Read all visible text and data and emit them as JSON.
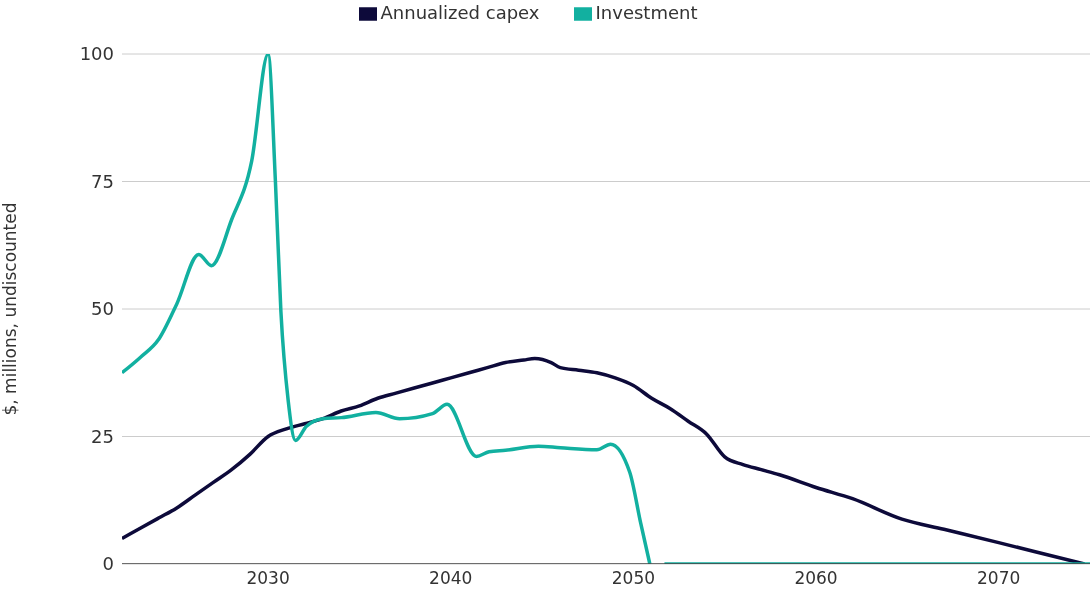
{
  "chart_data": {
    "type": "line",
    "ylabel": "$, millions, undiscounted",
    "xlim": [
      2022,
      2075
    ],
    "xticks": [
      2030,
      2040,
      2050,
      2060,
      2070
    ],
    "ylim": [
      0,
      100
    ],
    "yticks": [
      0,
      25,
      50,
      75,
      100
    ],
    "grid": "y",
    "legend": "top",
    "marker": "none",
    "line_style": "solid",
    "series": [
      {
        "name": "Annualized capex",
        "color": "#0d0a3a",
        "x": [
          2022,
          2023,
          2024,
          2025,
          2026,
          2027,
          2028,
          2029,
          2030,
          2031,
          2032,
          2033,
          2034,
          2035,
          2036,
          2037,
          2038,
          2039,
          2040,
          2041,
          2042,
          2043,
          2044,
          2044.6,
          2045.5,
          2046,
          2047,
          2048,
          2049,
          2050,
          2051,
          2052,
          2053,
          2054,
          2055,
          2056,
          2057,
          2058,
          2060,
          2062,
          2064.7,
          2067,
          2070,
          2072,
          2074.7
        ],
        "values": [
          5,
          7,
          9,
          11,
          13.5,
          16,
          18.5,
          21.5,
          25,
          26.5,
          27.5,
          28.5,
          30,
          31,
          32.5,
          33.5,
          34.5,
          35.5,
          36.5,
          37.5,
          38.5,
          39.5,
          40,
          40.3,
          39.5,
          38.5,
          38,
          37.5,
          36.5,
          35,
          32.5,
          30.5,
          28,
          25.5,
          21,
          19.5,
          18.5,
          17.5,
          15,
          12.8,
          8.8,
          6.8,
          4.2,
          2.4,
          0
        ]
      },
      {
        "name": "Investment",
        "color": "#12b0a0",
        "x": [
          2022,
          2023,
          2024,
          2025,
          2026.2,
          2026.9,
          2028,
          2029.1,
          2030,
          2030.4,
          2030.7,
          2031.1,
          2031.5,
          2032.1,
          2033,
          2034,
          2035.9,
          2037.2,
          2039,
          2039.8,
          2041.4,
          2042.1,
          2043,
          2044.8,
          2046,
          2048,
          2048.75,
          2049.8,
          2050.4,
          2050.9,
          2051.3,
          2051.7,
          2060,
          2075
        ],
        "values": [
          37.5,
          40.5,
          44,
          51,
          60.7,
          58.5,
          67.5,
          79,
          100,
          75,
          49.5,
          32,
          24.2,
          27,
          28.5,
          28.7,
          29.7,
          28.5,
          29.5,
          31.3,
          21.1,
          22,
          22.3,
          23.1,
          22.8,
          22.4,
          23.5,
          18,
          8,
          0,
          null,
          0,
          0,
          0
        ]
      }
    ]
  }
}
